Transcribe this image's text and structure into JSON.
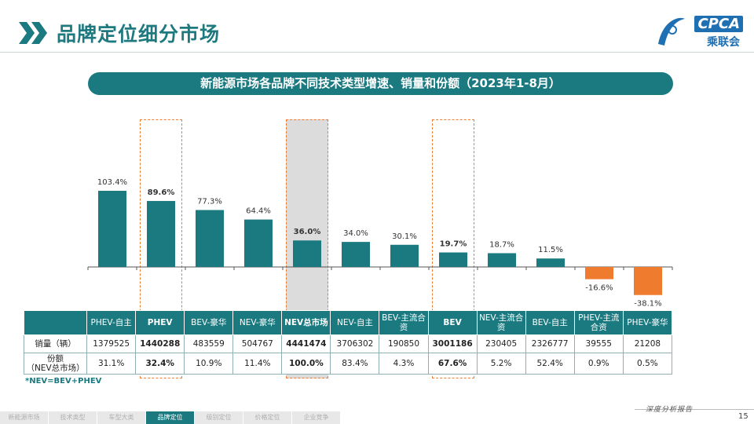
{
  "header": {
    "title": "品牌定位细分市场"
  },
  "logo": {
    "text_en": "CPCA",
    "text_cn": "乘联会"
  },
  "subtitle": "新能源市场各品牌不同技术类型增速、销量和份额（2023年1-8月）",
  "chart_data": {
    "type": "bar",
    "categories": [
      "PHEV-自主",
      "PHEV",
      "BEV-豪华",
      "NEV-豪华",
      "NEV总市场",
      "NEV-自主",
      "BEV-主流合资",
      "BEV",
      "NEV-主流合资",
      "BEV-自主",
      "PHEV-主流合资",
      "PHEV-豪华"
    ],
    "values": [
      103.4,
      89.6,
      77.3,
      64.4,
      36.0,
      34.0,
      30.1,
      19.7,
      18.7,
      11.5,
      -16.6,
      -38.1
    ],
    "value_labels": [
      "103.4%",
      "89.6%",
      "77.3%",
      "64.4%",
      "36.0%",
      "34.0%",
      "30.1%",
      "19.7%",
      "18.7%",
      "11.5%",
      "-16.6%",
      "-38.1%"
    ],
    "bold_labels": [
      false,
      true,
      false,
      false,
      true,
      false,
      false,
      true,
      false,
      false,
      false,
      false
    ],
    "highlighted": [
      1,
      4,
      7
    ],
    "gray_highlight": 4,
    "colors": {
      "positive": "#1a7a80",
      "negative": "#ef7b2f",
      "highlight_gray": "#dcdcdc",
      "dash": "#ef7b2f"
    },
    "ylim": [
      -40,
      110
    ]
  },
  "table": {
    "headers": [
      "PHEV-自主",
      "PHEV",
      "BEV-豪华",
      "NEV-豪华",
      "NEV总市场",
      "NEV-自主",
      "BEV-主流合资",
      "BEV",
      "NEV-主流合资",
      "BEV-自主",
      "PHEV-主流合资",
      "PHEV-豪华"
    ],
    "rows": [
      {
        "label": "销量（辆）",
        "values": [
          "1379525",
          "1440288",
          "483559",
          "504767",
          "4441474",
          "3706302",
          "190850",
          "3001186",
          "230405",
          "2326777",
          "39555",
          "21208"
        ]
      },
      {
        "label": "份额\n（NEV总市场）",
        "values": [
          "31.1%",
          "32.4%",
          "10.9%",
          "11.4%",
          "100.0%",
          "83.4%",
          "4.3%",
          "67.6%",
          "5.2%",
          "52.4%",
          "0.9%",
          "0.5%"
        ]
      }
    ]
  },
  "footnote": "*NEV=BEV+PHEV",
  "footer": {
    "tagline": "深度分析报告",
    "page": "15",
    "nav": [
      "新能源市场",
      "技术类型",
      "车型大类",
      "品牌定位",
      "级别定位",
      "价格定位",
      "企业竞争"
    ],
    "active_nav": 3
  }
}
